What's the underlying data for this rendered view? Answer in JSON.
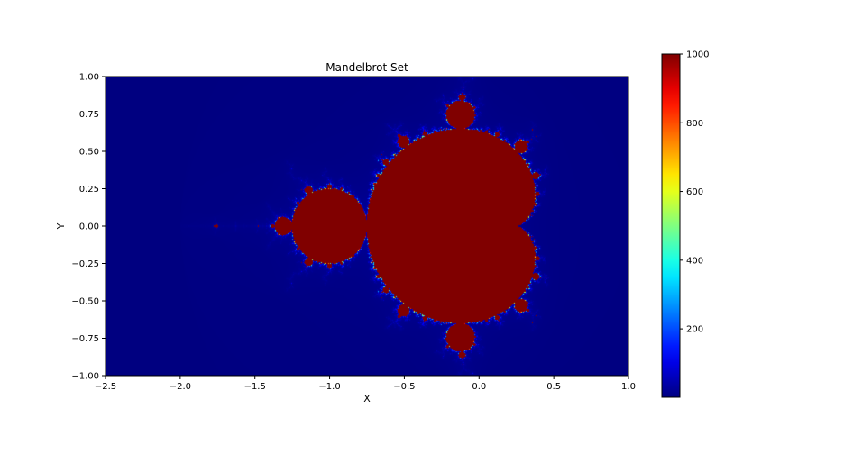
{
  "chart_data": {
    "type": "heatmap",
    "title": "Mandelbrot Set",
    "xlabel": "X",
    "ylabel": "Y",
    "xlim": [
      -2.5,
      1.0
    ],
    "ylim": [
      -1.0,
      1.0
    ],
    "xticks": [
      -2.5,
      -2.0,
      -1.5,
      -1.0,
      -0.5,
      0.0,
      0.5,
      1.0
    ],
    "xtick_labels": [
      "−2.5",
      "−2.0",
      "−1.5",
      "−1.0",
      "−0.5",
      "0.0",
      "0.5",
      "1.0"
    ],
    "yticks": [
      -1.0,
      -0.75,
      -0.5,
      -0.25,
      0.0,
      0.25,
      0.5,
      0.75,
      1.0
    ],
    "ytick_labels": [
      "−1.00",
      "−0.75",
      "−0.50",
      "−0.25",
      "0.00",
      "0.25",
      "0.50",
      "0.75",
      "1.00"
    ],
    "colormap": "jet",
    "value_range": [
      1,
      1000
    ],
    "max_iterations": 1000,
    "colorbar": {
      "ticks": [
        200,
        400,
        600,
        800,
        1000
      ],
      "tick_labels": [
        "200",
        "400",
        "600",
        "800",
        "1000"
      ],
      "placement": "right"
    },
    "set_color": "#800000",
    "background_color": "#000080",
    "grid": false
  }
}
